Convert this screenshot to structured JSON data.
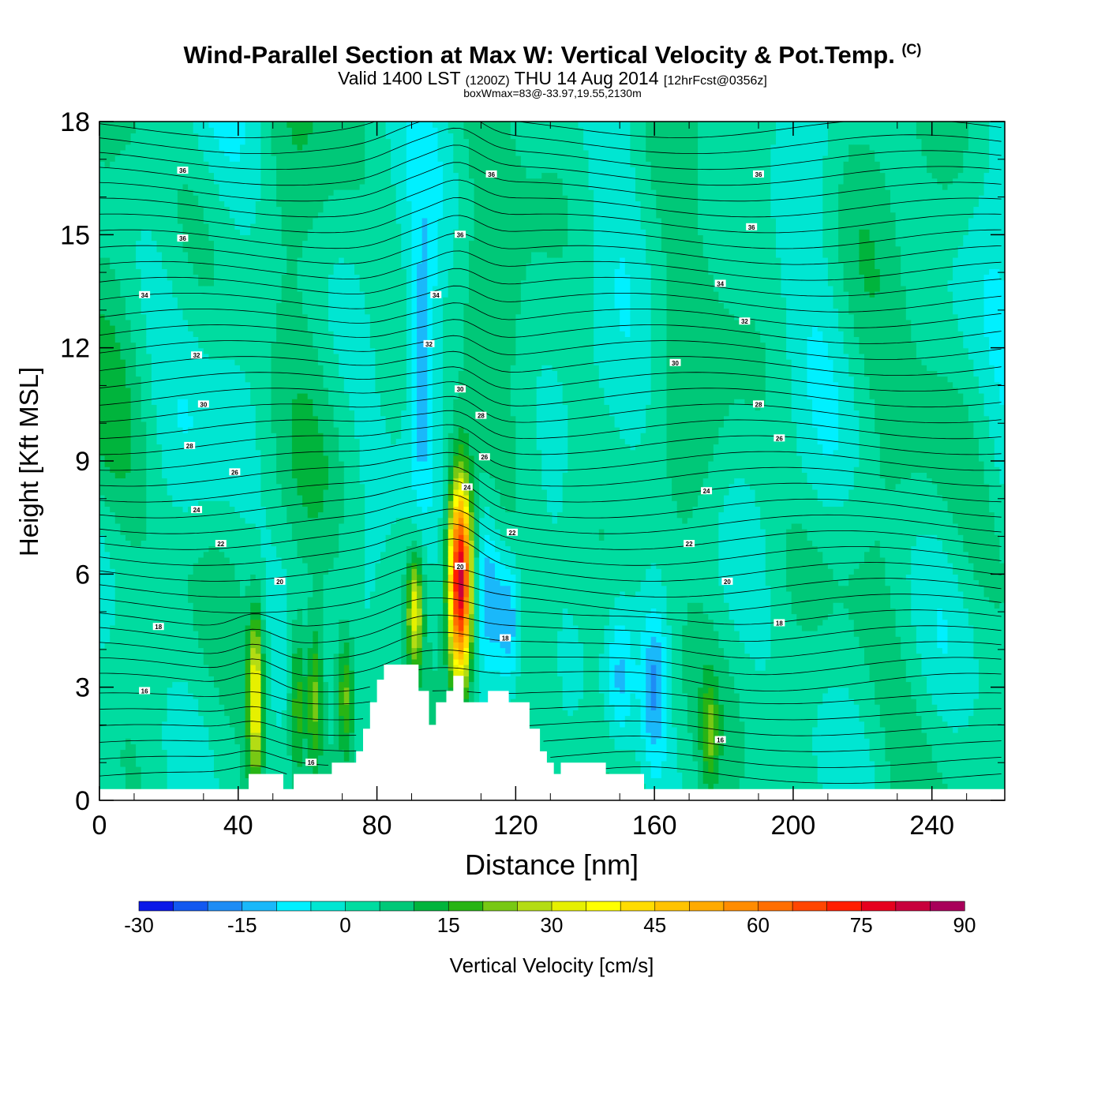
{
  "title": {
    "main": "Wind-Parallel Section at Max W: Vertical Velocity & Pot.Temp.",
    "copyright": "(C)",
    "valid_prefix": "Valid 1400 LST",
    "utc": "(1200Z)",
    "date": "THU 14 Aug 2014",
    "forecast": "[12hrFcst@0356z]",
    "box_max": "boxWmax=83@-33.97,19.55,2130m"
  },
  "chart_data": {
    "type": "heatmap",
    "xlabel": "Distance [nm]",
    "ylabel": "Height [Kft MSL]",
    "xlim": [
      0,
      261
    ],
    "ylim": [
      0,
      18
    ],
    "x_ticks": [
      "0",
      "40",
      "80",
      "120",
      "160",
      "200",
      "240"
    ],
    "y_ticks": [
      "0",
      "3",
      "6",
      "9",
      "12",
      "15",
      "18"
    ],
    "colorbar": {
      "label": "Vertical Velocity [cm/s]",
      "ticks": [
        "-30",
        "-15",
        "0",
        "15",
        "30",
        "45",
        "60",
        "75",
        "90"
      ],
      "levels": [
        -30,
        -25,
        -20,
        -15,
        -10,
        -5,
        0,
        5,
        10,
        15,
        20,
        25,
        30,
        35,
        40,
        45,
        50,
        55,
        60,
        65,
        70,
        75,
        80,
        85,
        90
      ],
      "colors": [
        "#0b18e8",
        "#1258f0",
        "#1e8cf5",
        "#1ab8fa",
        "#00f0ff",
        "#00e6d2",
        "#00dca0",
        "#00c878",
        "#00b43c",
        "#28b414",
        "#78c814",
        "#b4dc14",
        "#e6f000",
        "#ffff00",
        "#ffdc00",
        "#ffc300",
        "#ffaa00",
        "#ff8c00",
        "#ff6e00",
        "#ff4600",
        "#ff1e00",
        "#e6001e",
        "#c8003c",
        "#a8005a"
      ]
    },
    "updrafts": [
      {
        "x": 45,
        "z_base": 0.5,
        "z_top": 5.0,
        "w_max": 35
      },
      {
        "x": 57,
        "z_base": 0.5,
        "z_top": 4.8,
        "w_max": 18
      },
      {
        "x": 62,
        "z_base": 0.8,
        "z_top": 4.6,
        "w_max": 20
      },
      {
        "x": 71,
        "z_base": 1.2,
        "z_top": 4.4,
        "w_max": 18
      },
      {
        "x": 91,
        "z_base": 3.5,
        "z_top": 6.6,
        "w_max": 30
      },
      {
        "x": 104,
        "z_base": 3.2,
        "z_top": 8.5,
        "w_max": 83
      },
      {
        "x": 176,
        "z_base": 0.4,
        "z_top": 3.1,
        "w_max": 15
      }
    ],
    "downdrafts": [
      {
        "x": 93,
        "z_base": 8,
        "z_top": 15,
        "w_min": -15
      },
      {
        "x": 112,
        "z_base": 3.5,
        "z_top": 7.5,
        "w_min": -18
      },
      {
        "x": 118,
        "z_base": 3.0,
        "z_top": 6.5,
        "w_min": -20
      },
      {
        "x": 150,
        "z_base": 1.5,
        "z_top": 5.0,
        "w_min": -12
      },
      {
        "x": 160,
        "z_base": 1.0,
        "z_top": 5.0,
        "w_min": -15
      }
    ],
    "terrain": [
      [
        0,
        0.3
      ],
      [
        43,
        0.3
      ],
      [
        43,
        0.7
      ],
      [
        53,
        0.7
      ],
      [
        53,
        0.3
      ],
      [
        56,
        0.3
      ],
      [
        56,
        0.7
      ],
      [
        67,
        0.7
      ],
      [
        67,
        1.0
      ],
      [
        74,
        1.0
      ],
      [
        74,
        1.3
      ],
      [
        76,
        1.3
      ],
      [
        76,
        1.9
      ],
      [
        78,
        1.9
      ],
      [
        78,
        2.6
      ],
      [
        80,
        2.6
      ],
      [
        80,
        3.2
      ],
      [
        82,
        3.2
      ],
      [
        82,
        3.6
      ],
      [
        92,
        3.6
      ],
      [
        92,
        2.9
      ],
      [
        95,
        2.9
      ],
      [
        95,
        2.0
      ],
      [
        97,
        2.0
      ],
      [
        97,
        2.6
      ],
      [
        100,
        2.6
      ],
      [
        100,
        2.9
      ],
      [
        102,
        2.9
      ],
      [
        102,
        3.3
      ],
      [
        105,
        3.3
      ],
      [
        105,
        2.6
      ],
      [
        112,
        2.6
      ],
      [
        112,
        2.9
      ],
      [
        118,
        2.9
      ],
      [
        118,
        2.6
      ],
      [
        124,
        2.6
      ],
      [
        124,
        1.9
      ],
      [
        127,
        1.9
      ],
      [
        127,
        1.3
      ],
      [
        129,
        1.3
      ],
      [
        129,
        1.0
      ],
      [
        131,
        1.0
      ],
      [
        131,
        0.7
      ],
      [
        133,
        0.7
      ],
      [
        133,
        1.0
      ],
      [
        146,
        1.0
      ],
      [
        146,
        0.7
      ],
      [
        157,
        0.7
      ],
      [
        157,
        0.3
      ],
      [
        261,
        0.3
      ]
    ],
    "theta_labels": [
      {
        "x": 24,
        "z": 16.7,
        "text": "36"
      },
      {
        "x": 113,
        "z": 16.6,
        "text": "36"
      },
      {
        "x": 190,
        "z": 16.6,
        "text": "36"
      },
      {
        "x": 24,
        "z": 14.9,
        "text": "36"
      },
      {
        "x": 104,
        "z": 15.0,
        "text": "36"
      },
      {
        "x": 188,
        "z": 15.2,
        "text": "36"
      },
      {
        "x": 13,
        "z": 13.4,
        "text": "34"
      },
      {
        "x": 97,
        "z": 13.4,
        "text": "34"
      },
      {
        "x": 179,
        "z": 13.7,
        "text": "34"
      },
      {
        "x": 28,
        "z": 11.8,
        "text": "32"
      },
      {
        "x": 95,
        "z": 12.1,
        "text": "32"
      },
      {
        "x": 186,
        "z": 12.7,
        "text": "32"
      },
      {
        "x": 30,
        "z": 10.5,
        "text": "30"
      },
      {
        "x": 104,
        "z": 10.9,
        "text": "30"
      },
      {
        "x": 166,
        "z": 11.6,
        "text": "30"
      },
      {
        "x": 26,
        "z": 9.4,
        "text": "28"
      },
      {
        "x": 110,
        "z": 10.2,
        "text": "28"
      },
      {
        "x": 190,
        "z": 10.5,
        "text": "28"
      },
      {
        "x": 39,
        "z": 8.7,
        "text": "26"
      },
      {
        "x": 111,
        "z": 9.1,
        "text": "26"
      },
      {
        "x": 196,
        "z": 9.6,
        "text": "26"
      },
      {
        "x": 28,
        "z": 7.7,
        "text": "24"
      },
      {
        "x": 106,
        "z": 8.3,
        "text": "24"
      },
      {
        "x": 175,
        "z": 8.2,
        "text": "24"
      },
      {
        "x": 35,
        "z": 6.8,
        "text": "22"
      },
      {
        "x": 119,
        "z": 7.1,
        "text": "22"
      },
      {
        "x": 170,
        "z": 6.8,
        "text": "22"
      },
      {
        "x": 52,
        "z": 5.8,
        "text": "20"
      },
      {
        "x": 104,
        "z": 6.2,
        "text": "20"
      },
      {
        "x": 181,
        "z": 5.8,
        "text": "20"
      },
      {
        "x": 17,
        "z": 4.6,
        "text": "18"
      },
      {
        "x": 117,
        "z": 4.3,
        "text": "18"
      },
      {
        "x": 196,
        "z": 4.7,
        "text": "18"
      },
      {
        "x": 13,
        "z": 2.9,
        "text": "16"
      },
      {
        "x": 61,
        "z": 1.0,
        "text": "16"
      },
      {
        "x": 179,
        "z": 1.6,
        "text": "16"
      }
    ]
  }
}
